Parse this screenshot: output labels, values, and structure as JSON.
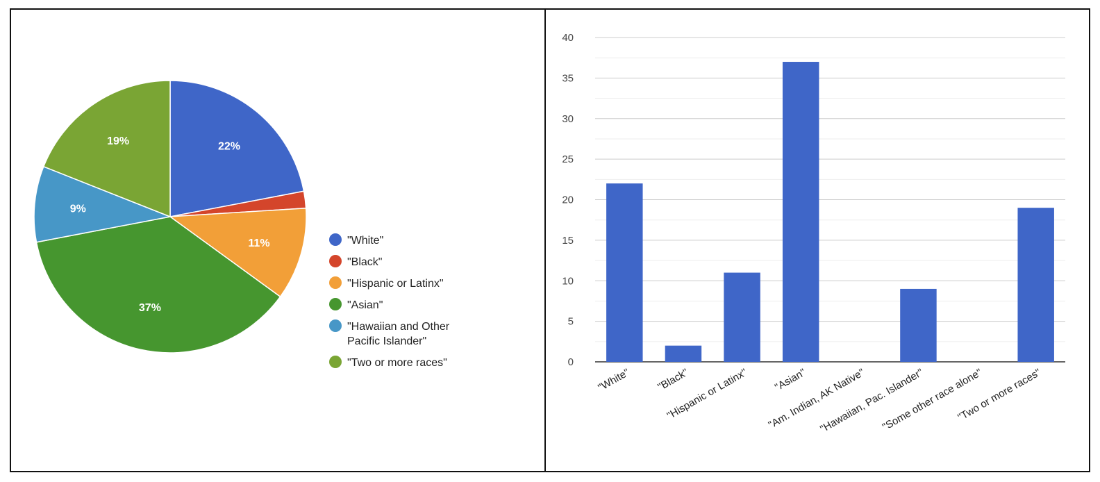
{
  "charts": {
    "pie": {
      "colors": [
        "#3f66c8",
        "#d4452b",
        "#f29f38",
        "#46962f",
        "#4797c7",
        "#7aa534"
      ],
      "pct_labels": [
        "22%",
        "",
        "11%",
        "37%",
        "9%",
        "19%"
      ]
    },
    "bar": {
      "bar_color": "#3f66c8"
    }
  },
  "chart_data": [
    {
      "type": "pie",
      "title": "",
      "categories": [
        "\"White\"",
        "\"Black\"",
        "\"Hispanic or Latinx\"",
        "\"Asian\"",
        "\"Hawaiian and Other Pacific Islander\"",
        "\"Two or more races\""
      ],
      "values": [
        22,
        2,
        11,
        37,
        9,
        19
      ],
      "legend": "right"
    },
    {
      "type": "bar",
      "title": "",
      "xlabel": "",
      "ylabel": "",
      "categories": [
        "\"White\"",
        "\"Black\"",
        "\"Hispanic or Latinx\"",
        "\"Asian\"",
        "\"Am. Indian, AK Native\"",
        "\"Hawaiian, Pac. Islander\"",
        "\"Some other race alone\"",
        "\"Two or more races\""
      ],
      "values": [
        22,
        2,
        11,
        37,
        0,
        9,
        0,
        19
      ],
      "ylim": [
        0,
        40
      ],
      "yticks": [
        0,
        5,
        10,
        15,
        20,
        25,
        30,
        35,
        40
      ],
      "grid": true
    }
  ]
}
